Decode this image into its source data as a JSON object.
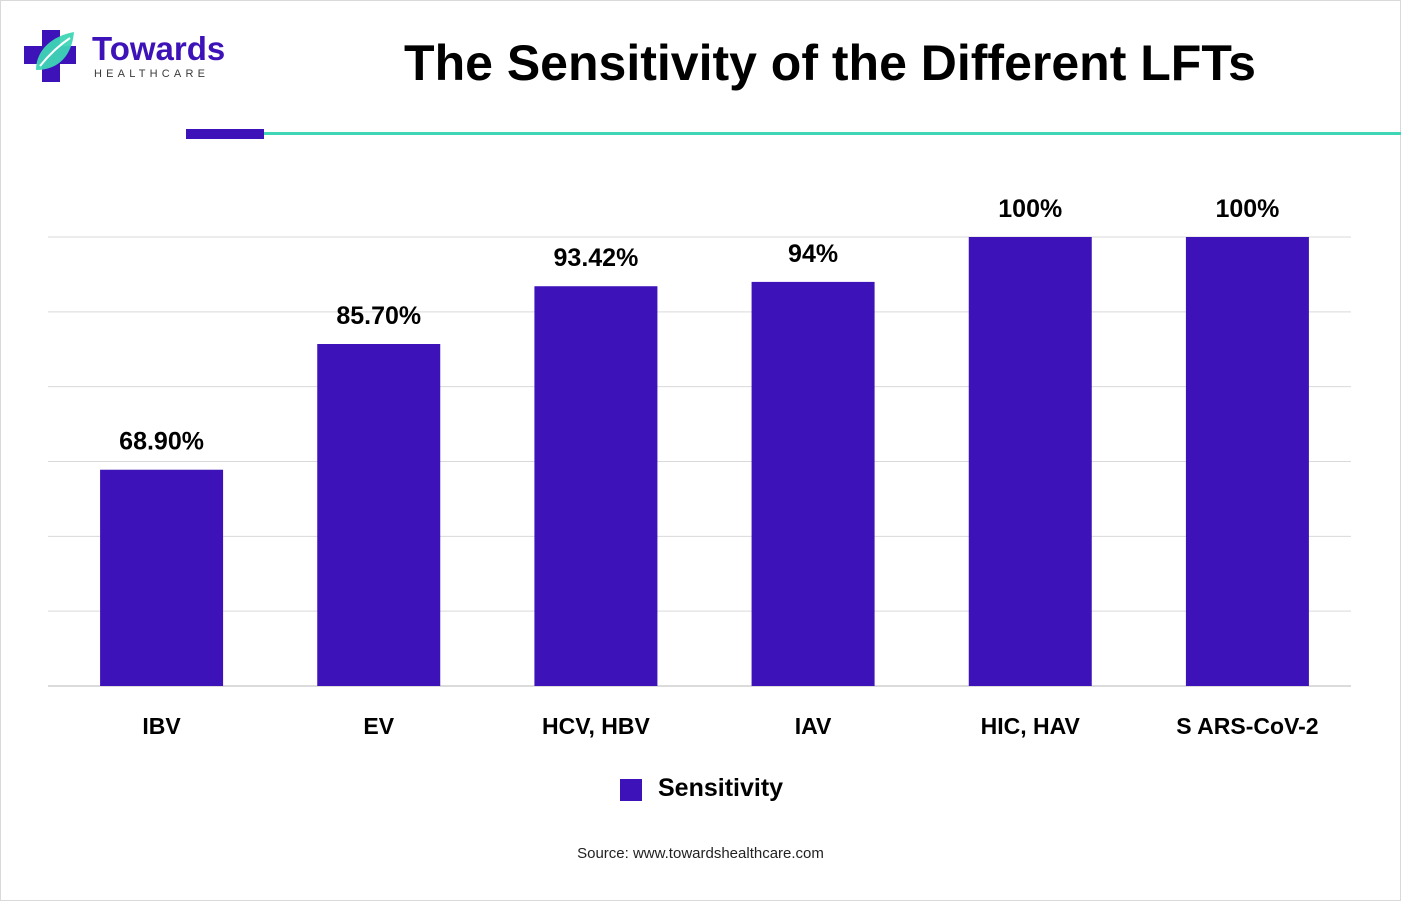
{
  "brand": {
    "name": "Towards",
    "tagline": "HEALTHCARE",
    "logo_icon": "medical-cross-leaf-icon",
    "colors": {
      "primary": "#3d12b8",
      "accent": "#3ed6b5"
    }
  },
  "chart_data": {
    "type": "bar",
    "title": "The Sensitivity of the Different LFTs",
    "categories": [
      "IBV",
      "EV",
      "HCV, HBV",
      "IAV",
      "HIC, HAV",
      "S ARS-CoV-2"
    ],
    "series": [
      {
        "name": "Sensitivity",
        "values": [
          68.9,
          85.7,
          93.42,
          94,
          100,
          100
        ],
        "labels": [
          "68.90%",
          "85.70%",
          "93.42%",
          "94%",
          "100%",
          "100%"
        ],
        "color": "#3d12b8"
      }
    ],
    "ylim": [
      40,
      100
    ],
    "grid": true,
    "legend": "bottom-center",
    "xlabel": "",
    "ylabel": ""
  },
  "source": "Source: www.towardshealthcare.com"
}
